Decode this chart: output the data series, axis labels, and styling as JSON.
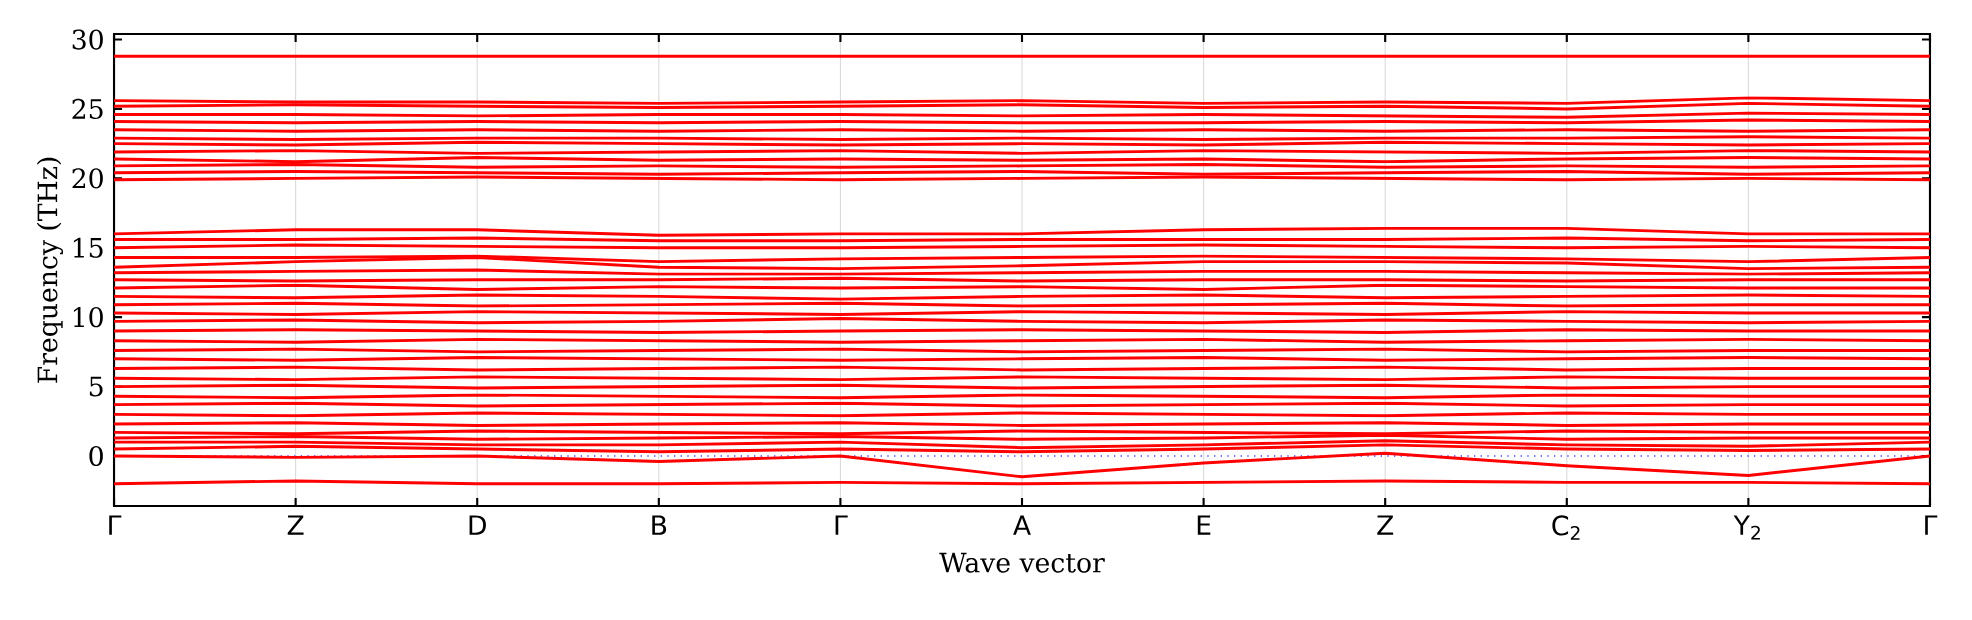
{
  "chart_data": {
    "type": "line",
    "xlabel": "Wave vector",
    "ylabel": "Frequency (THz)",
    "categories": [
      "Γ",
      "Z",
      "D",
      "B",
      "Γ",
      "A",
      "E",
      "Z",
      "C$_{2}$",
      "Y$_{2}$",
      "Γ"
    ],
    "ylim": [
      -3.6,
      30.4
    ],
    "yticks": [
      0,
      5,
      10,
      15,
      20,
      25,
      30
    ],
    "grid": "x",
    "marker": "none",
    "line_style": "solid",
    "ref_lines": [
      {
        "axis": "y",
        "value": 0,
        "color": "#4444ff",
        "line_style": "dotted"
      }
    ],
    "series": [
      {
        "color": "#ff0000",
        "values": [
          28.8,
          28.8,
          28.8,
          28.8,
          28.8,
          28.8,
          28.8,
          28.8,
          28.8,
          28.8,
          28.8
        ]
      },
      {
        "color": "#ff0000",
        "values": [
          25.6,
          25.5,
          25.5,
          25.4,
          25.5,
          25.6,
          25.4,
          25.5,
          25.4,
          25.8,
          25.6
        ]
      },
      {
        "color": "#ff0000",
        "values": [
          25.2,
          25.3,
          25.2,
          25.1,
          25.2,
          25.3,
          25.1,
          25.2,
          25.0,
          25.4,
          25.2
        ]
      },
      {
        "color": "#ff0000",
        "values": [
          24.6,
          24.6,
          24.5,
          24.6,
          24.6,
          24.5,
          24.6,
          24.5,
          24.4,
          24.7,
          24.6
        ]
      },
      {
        "color": "#ff0000",
        "values": [
          24.1,
          24.0,
          24.1,
          24.0,
          24.1,
          24.0,
          24.0,
          24.1,
          24.0,
          24.2,
          24.1
        ]
      },
      {
        "color": "#ff0000",
        "values": [
          23.5,
          23.4,
          23.5,
          23.4,
          23.5,
          23.4,
          23.5,
          23.4,
          23.5,
          23.4,
          23.5
        ]
      },
      {
        "color": "#ff0000",
        "values": [
          22.9,
          22.8,
          22.9,
          22.9,
          22.8,
          22.9,
          22.8,
          22.9,
          22.9,
          23.0,
          22.9
        ]
      },
      {
        "color": "#ff0000",
        "values": [
          22.5,
          22.4,
          22.6,
          22.5,
          22.4,
          22.5,
          22.4,
          22.6,
          22.5,
          22.4,
          22.5
        ]
      },
      {
        "color": "#ff0000",
        "values": [
          21.9,
          22.0,
          21.8,
          21.9,
          22.0,
          21.8,
          22.0,
          21.9,
          21.8,
          22.0,
          21.9
        ]
      },
      {
        "color": "#ff0000",
        "values": [
          21.4,
          21.2,
          21.5,
          21.3,
          21.4,
          21.3,
          21.4,
          21.2,
          21.4,
          21.5,
          21.4
        ]
      },
      {
        "color": "#ff0000",
        "values": [
          20.9,
          21.0,
          20.8,
          20.9,
          20.8,
          20.9,
          21.0,
          20.8,
          20.9,
          20.8,
          20.9
        ]
      },
      {
        "color": "#ff0000",
        "values": [
          20.4,
          20.5,
          20.4,
          20.3,
          20.4,
          20.5,
          20.3,
          20.4,
          20.5,
          20.3,
          20.4
        ]
      },
      {
        "color": "#ff0000",
        "values": [
          19.9,
          20.0,
          20.1,
          20.0,
          19.9,
          20.0,
          20.1,
          20.0,
          19.9,
          20.0,
          19.9
        ]
      },
      {
        "color": "#ff0000",
        "values": [
          16.0,
          16.3,
          16.3,
          15.9,
          16.0,
          16.0,
          16.3,
          16.4,
          16.4,
          16.0,
          16.0
        ]
      },
      {
        "color": "#ff0000",
        "values": [
          15.6,
          15.6,
          15.7,
          15.5,
          15.5,
          15.6,
          15.6,
          15.6,
          15.7,
          15.5,
          15.6
        ]
      },
      {
        "color": "#ff0000",
        "values": [
          15.0,
          15.2,
          15.1,
          15.0,
          15.0,
          15.1,
          15.2,
          15.1,
          15.0,
          15.1,
          15.0
        ]
      },
      {
        "color": "#ff0000",
        "values": [
          14.3,
          14.3,
          14.4,
          14.0,
          14.2,
          14.3,
          14.4,
          14.3,
          14.2,
          14.0,
          14.3
        ]
      },
      {
        "color": "#ff0000",
        "values": [
          13.6,
          14.0,
          14.3,
          13.6,
          13.5,
          13.7,
          14.0,
          14.0,
          13.9,
          13.5,
          13.6
        ]
      },
      {
        "color": "#ff0000",
        "values": [
          13.2,
          13.3,
          13.4,
          13.1,
          13.1,
          13.2,
          13.3,
          13.3,
          13.2,
          13.1,
          13.2
        ]
      },
      {
        "color": "#ff0000",
        "values": [
          12.7,
          12.6,
          12.7,
          12.7,
          12.8,
          12.6,
          12.7,
          12.7,
          12.6,
          12.7,
          12.7
        ]
      },
      {
        "color": "#ff0000",
        "values": [
          12.1,
          12.3,
          12.0,
          12.2,
          12.1,
          12.2,
          12.0,
          12.3,
          12.2,
          12.1,
          12.1
        ]
      },
      {
        "color": "#ff0000",
        "values": [
          11.5,
          11.4,
          11.6,
          11.5,
          11.3,
          11.5,
          11.6,
          11.4,
          11.5,
          11.6,
          11.5
        ]
      },
      {
        "color": "#ff0000",
        "values": [
          10.9,
          11.0,
          10.8,
          10.9,
          11.0,
          10.8,
          10.9,
          11.0,
          10.8,
          10.9,
          10.9
        ]
      },
      {
        "color": "#ff0000",
        "values": [
          10.3,
          10.2,
          10.4,
          10.3,
          10.2,
          10.4,
          10.3,
          10.2,
          10.4,
          10.3,
          10.3
        ]
      },
      {
        "color": "#ff0000",
        "values": [
          9.7,
          9.8,
          9.6,
          9.7,
          9.9,
          9.7,
          9.6,
          9.8,
          9.7,
          9.6,
          9.7
        ]
      },
      {
        "color": "#ff0000",
        "values": [
          9.0,
          9.1,
          9.0,
          8.9,
          9.0,
          9.1,
          9.0,
          8.9,
          9.1,
          9.0,
          9.0
        ]
      },
      {
        "color": "#ff0000",
        "values": [
          8.3,
          8.2,
          8.4,
          8.3,
          8.2,
          8.3,
          8.4,
          8.2,
          8.3,
          8.4,
          8.3
        ]
      },
      {
        "color": "#ff0000",
        "values": [
          7.6,
          7.7,
          7.5,
          7.6,
          7.7,
          7.5,
          7.6,
          7.7,
          7.5,
          7.6,
          7.6
        ]
      },
      {
        "color": "#ff0000",
        "values": [
          7.0,
          6.9,
          7.1,
          7.0,
          6.9,
          7.0,
          7.1,
          6.9,
          7.0,
          7.1,
          7.0
        ]
      },
      {
        "color": "#ff0000",
        "values": [
          6.3,
          6.4,
          6.2,
          6.3,
          6.4,
          6.2,
          6.3,
          6.4,
          6.2,
          6.3,
          6.3
        ]
      },
      {
        "color": "#ff0000",
        "values": [
          5.6,
          5.5,
          5.7,
          5.6,
          5.5,
          5.7,
          5.6,
          5.5,
          5.7,
          5.6,
          5.6
        ]
      },
      {
        "color": "#ff0000",
        "values": [
          5.0,
          5.1,
          4.9,
          5.0,
          5.1,
          4.9,
          5.0,
          5.1,
          4.9,
          5.0,
          5.0
        ]
      },
      {
        "color": "#ff0000",
        "values": [
          4.3,
          4.2,
          4.4,
          4.3,
          4.2,
          4.4,
          4.3,
          4.2,
          4.4,
          4.3,
          4.3
        ]
      },
      {
        "color": "#ff0000",
        "values": [
          3.7,
          3.8,
          3.6,
          3.7,
          3.8,
          3.6,
          3.7,
          3.8,
          3.6,
          3.7,
          3.7
        ]
      },
      {
        "color": "#ff0000",
        "values": [
          3.0,
          2.9,
          3.1,
          3.0,
          2.9,
          3.1,
          3.0,
          2.9,
          3.1,
          3.0,
          3.0
        ]
      },
      {
        "color": "#ff0000",
        "values": [
          2.3,
          2.4,
          2.2,
          2.3,
          2.4,
          2.2,
          2.3,
          2.4,
          2.2,
          2.3,
          2.3
        ]
      },
      {
        "color": "#ff0000",
        "values": [
          1.7,
          1.6,
          1.8,
          1.7,
          1.6,
          1.8,
          1.7,
          1.6,
          1.8,
          1.7,
          1.7
        ]
      },
      {
        "color": "#ff0000",
        "values": [
          1.3,
          1.4,
          1.2,
          1.3,
          1.4,
          1.2,
          1.3,
          1.5,
          1.2,
          1.3,
          1.3
        ]
      },
      {
        "color": "#ff0000",
        "values": [
          1.0,
          1.0,
          0.8,
          0.8,
          1.0,
          0.6,
          0.8,
          1.1,
          0.8,
          0.7,
          1.0
        ]
      },
      {
        "color": "#ff0000",
        "values": [
          0.5,
          0.7,
          0.5,
          0.3,
          0.5,
          0.3,
          0.5,
          0.8,
          0.5,
          0.4,
          0.5
        ]
      },
      {
        "color": "#ff0000",
        "values": [
          0,
          -0.1,
          0,
          -0.4,
          0,
          -1.5,
          -0.5,
          0.2,
          -0.7,
          -1.4,
          0
        ]
      },
      {
        "color": "#ff0000",
        "values": [
          -2.0,
          -1.8,
          -2.0,
          -2.0,
          -1.9,
          -2.0,
          -1.9,
          -1.8,
          -1.9,
          -1.9,
          -2.0
        ]
      }
    ]
  }
}
